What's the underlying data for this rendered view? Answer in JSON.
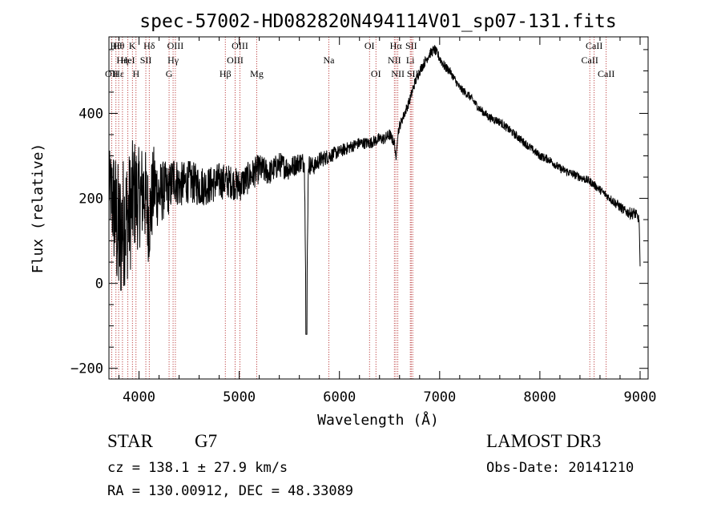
{
  "chart_data": {
    "type": "line",
    "title": "spec-57002-HD082820N494114V01_sp07-131.fits",
    "xlabel": "Wavelength (Å)",
    "ylabel": "Flux (relative)",
    "xlim": [
      3700,
      9080
    ],
    "ylim": [
      -225,
      580
    ],
    "xticks": [
      4000,
      5000,
      6000,
      7000,
      8000,
      9000
    ],
    "xtick_labels": [
      "4000",
      "5000",
      "6000",
      "7000",
      "8000",
      "9000"
    ],
    "yticks": [
      -200,
      0,
      200,
      400
    ],
    "ytick_labels": [
      "−200",
      "0",
      "200",
      "400"
    ],
    "grid": false,
    "series": [
      {
        "name": "flux",
        "x": [
          3700,
          3750,
          3800,
          3850,
          3900,
          3950,
          4000,
          4050,
          4100,
          4150,
          4200,
          4250,
          4300,
          4350,
          4400,
          4500,
          4600,
          4700,
          4800,
          4900,
          5000,
          5100,
          5200,
          5300,
          5400,
          5500,
          5600,
          5650,
          5670,
          5690,
          5750,
          5800,
          5900,
          6000,
          6100,
          6200,
          6300,
          6400,
          6450,
          6500,
          6550,
          6565,
          6580,
          6600,
          6650,
          6700,
          6750,
          6800,
          6850,
          6900,
          6950,
          7000,
          7050,
          7100,
          7150,
          7200,
          7300,
          7400,
          7500,
          7600,
          7700,
          7800,
          7900,
          8000,
          8100,
          8200,
          8300,
          8400,
          8500,
          8550,
          8600,
          8650,
          8700,
          8750,
          8800,
          8850,
          8900,
          8950,
          8990,
          9000
        ],
        "y": [
          230,
          180,
          100,
          150,
          160,
          210,
          200,
          220,
          150,
          230,
          210,
          220,
          220,
          250,
          230,
          240,
          230,
          230,
          240,
          240,
          230,
          250,
          270,
          260,
          280,
          270,
          285,
          285,
          -120,
          280,
          275,
          290,
          300,
          310,
          320,
          330,
          330,
          340,
          340,
          350,
          330,
          290,
          350,
          370,
          400,
          430,
          470,
          500,
          520,
          540,
          550,
          530,
          510,
          500,
          480,
          460,
          440,
          410,
          390,
          380,
          360,
          340,
          320,
          300,
          290,
          270,
          260,
          250,
          240,
          230,
          220,
          210,
          200,
          190,
          180,
          170,
          165,
          165,
          150,
          40
        ],
        "noise": [
          80,
          150,
          180,
          160,
          150,
          140,
          120,
          120,
          110,
          100,
          80,
          70,
          60,
          60,
          55,
          50,
          50,
          45,
          45,
          40,
          40,
          38,
          35,
          30,
          30,
          28,
          25,
          25,
          0,
          25,
          20,
          20,
          18,
          15,
          15,
          14,
          14,
          14,
          14,
          14,
          12,
          0,
          12,
          12,
          12,
          12,
          12,
          12,
          12,
          12,
          12,
          12,
          12,
          10,
          10,
          10,
          10,
          10,
          10,
          10,
          10,
          10,
          10,
          10,
          10,
          10,
          10,
          10,
          10,
          10,
          10,
          10,
          10,
          12,
          12,
          12,
          14,
          14,
          10,
          0
        ]
      }
    ],
    "lines": [
      {
        "wl": 3727,
        "labels": [
          "OII"
        ],
        "rows": [
          2
        ]
      },
      {
        "wl": 3770,
        "labels": [
          "Hθ"
        ],
        "rows": [
          0
        ]
      },
      {
        "wl": 3797,
        "labels": [
          "Hθ",
          "Hε"
        ],
        "rows": [
          0,
          2
        ]
      },
      {
        "wl": 3835,
        "labels": [
          "Hη"
        ],
        "rows": [
          1
        ]
      },
      {
        "wl": 3889,
        "labels": [
          "HeI"
        ],
        "rows": [
          1
        ]
      },
      {
        "wl": 3934,
        "labels": [
          "K"
        ],
        "rows": [
          0
        ]
      },
      {
        "wl": 3970,
        "labels": [
          "H"
        ],
        "rows": [
          2
        ]
      },
      {
        "wl": 4102,
        "labels": [
          "Hδ"
        ],
        "rows": [
          0
        ]
      },
      {
        "wl": 4068,
        "labels": [
          "SII"
        ],
        "rows": [
          1
        ]
      },
      {
        "wl": 4300,
        "labels": [
          "G"
        ],
        "rows": [
          2
        ]
      },
      {
        "wl": 4340,
        "labels": [
          "Hγ"
        ],
        "rows": [
          1
        ]
      },
      {
        "wl": 4363,
        "labels": [
          "OIII"
        ],
        "rows": [
          0
        ]
      },
      {
        "wl": 4861,
        "labels": [
          "Hβ"
        ],
        "rows": [
          2
        ]
      },
      {
        "wl": 4959,
        "labels": [
          "OIII"
        ],
        "rows": [
          1
        ]
      },
      {
        "wl": 5007,
        "labels": [
          "OIII"
        ],
        "rows": [
          0
        ]
      },
      {
        "wl": 5175,
        "labels": [
          "Mg"
        ],
        "rows": [
          2
        ]
      },
      {
        "wl": 5894,
        "labels": [
          "Na"
        ],
        "rows": [
          1
        ]
      },
      {
        "wl": 6300,
        "labels": [
          "OI"
        ],
        "rows": [
          0
        ]
      },
      {
        "wl": 6364,
        "labels": [
          "OI"
        ],
        "rows": [
          2
        ]
      },
      {
        "wl": 6548,
        "labels": [
          "NII"
        ],
        "rows": [
          1
        ]
      },
      {
        "wl": 6563,
        "labels": [
          "Hα"
        ],
        "rows": [
          0
        ]
      },
      {
        "wl": 6583,
        "labels": [
          "NII"
        ],
        "rows": [
          2
        ]
      },
      {
        "wl": 6707,
        "labels": [
          "Li"
        ],
        "rows": [
          1
        ]
      },
      {
        "wl": 6716,
        "labels": [
          "SII"
        ],
        "rows": [
          0
        ]
      },
      {
        "wl": 6731,
        "labels": [
          "SII"
        ],
        "rows": [
          2
        ]
      },
      {
        "wl": 8498,
        "labels": [
          "CaII"
        ],
        "rows": [
          1
        ]
      },
      {
        "wl": 8542,
        "labels": [
          "CaII"
        ],
        "rows": [
          0
        ]
      },
      {
        "wl": 8662,
        "labels": [
          "CaII"
        ],
        "rows": [
          2
        ]
      }
    ]
  },
  "info": {
    "object_class": "STAR",
    "subclass": "G7",
    "survey": "LAMOST DR3",
    "redshift_line": "cz = 138.1 ± 27.9 km/s",
    "obs_date_line": "Obs-Date: 20141210",
    "coords_line": "RA = 130.00912, DEC =  48.33089"
  }
}
